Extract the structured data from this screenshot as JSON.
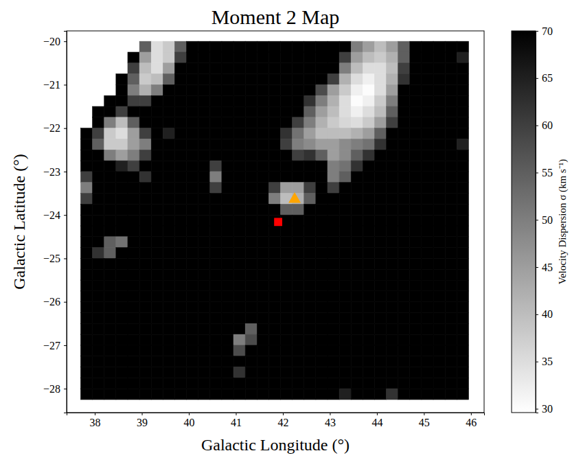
{
  "chart_data": {
    "type": "heatmap",
    "title": "Moment 2 Map",
    "x_label": "Galactic Longitude (°)",
    "y_label": "Galactic Latitude (°)",
    "xlim": [
      37.4,
      46.28
    ],
    "ylim": [
      -28.55,
      -19.76
    ],
    "xticks": [
      38,
      39,
      40,
      41,
      42,
      43,
      44,
      45,
      46
    ],
    "yticks": [
      {
        "value": -28,
        "label": "−28"
      },
      {
        "value": -27,
        "label": "−27"
      },
      {
        "value": -26,
        "label": "−26"
      },
      {
        "value": -25,
        "label": "−25"
      },
      {
        "value": -24,
        "label": "−24"
      },
      {
        "value": -23,
        "label": "−23"
      },
      {
        "value": -22,
        "label": "−22"
      },
      {
        "value": -21,
        "label": "−21"
      },
      {
        "value": -20,
        "label": "−20"
      }
    ],
    "x_bins": [
      37.7,
      37.95,
      38.2,
      38.45,
      38.7,
      38.95,
      39.2,
      39.45,
      39.7,
      39.95,
      40.2,
      40.45,
      40.7,
      40.95,
      41.2,
      41.45,
      41.7,
      41.95,
      42.2,
      42.45,
      42.7,
      42.95,
      43.2,
      43.45,
      43.7,
      43.95,
      44.2,
      44.45,
      44.7,
      44.95,
      45.2,
      45.45,
      45.7,
      45.95
    ],
    "y_bins": [
      -20,
      -20.25,
      -20.5,
      -20.75,
      -21,
      -21.25,
      -21.5,
      -21.75,
      -22,
      -22.25,
      -22.5,
      -22.75,
      -23,
      -23.25,
      -23.5,
      -23.75,
      -24,
      -24.25,
      -24.5,
      -24.75,
      -25,
      -25.25,
      -25.5,
      -25.75,
      -26,
      -26.25,
      -26.5,
      -26.75,
      -27,
      -27.25,
      -27.5,
      -27.75,
      -28,
      -28.25
    ],
    "values": [
      [
        null,
        null,
        null,
        null,
        null,
        55,
        35,
        38,
        55,
        70,
        70,
        70,
        70,
        70,
        70,
        70,
        70,
        70,
        70,
        70,
        70,
        70,
        70,
        50,
        45,
        40,
        45,
        55,
        70,
        70,
        70,
        70,
        70
      ],
      [
        null,
        null,
        null,
        null,
        70,
        45,
        35,
        38,
        60,
        70,
        70,
        70,
        70,
        70,
        70,
        70,
        70,
        70,
        70,
        70,
        70,
        70,
        60,
        45,
        40,
        38,
        42,
        55,
        70,
        70,
        70,
        70,
        65
      ],
      [
        null,
        null,
        null,
        null,
        60,
        40,
        35,
        45,
        70,
        70,
        70,
        70,
        70,
        70,
        70,
        70,
        70,
        70,
        70,
        70,
        70,
        70,
        50,
        40,
        35,
        35,
        40,
        60,
        70,
        70,
        70,
        70,
        70
      ],
      [
        null,
        null,
        null,
        70,
        55,
        38,
        40,
        55,
        70,
        70,
        70,
        70,
        70,
        70,
        70,
        70,
        70,
        70,
        70,
        70,
        70,
        60,
        42,
        35,
        32,
        35,
        42,
        62,
        70,
        70,
        70,
        70,
        70
      ],
      [
        null,
        null,
        null,
        70,
        50,
        42,
        50,
        70,
        70,
        70,
        70,
        70,
        70,
        70,
        70,
        70,
        70,
        70,
        70,
        70,
        58,
        45,
        38,
        32,
        30,
        35,
        45,
        70,
        70,
        70,
        70,
        70,
        70
      ],
      [
        null,
        null,
        70,
        70,
        60,
        60,
        70,
        70,
        70,
        70,
        70,
        70,
        70,
        70,
        70,
        70,
        70,
        70,
        70,
        62,
        50,
        42,
        35,
        30,
        32,
        38,
        50,
        70,
        70,
        70,
        70,
        70,
        70
      ],
      [
        null,
        70,
        70,
        60,
        70,
        70,
        70,
        70,
        70,
        70,
        70,
        70,
        70,
        70,
        70,
        70,
        70,
        70,
        70,
        55,
        45,
        40,
        35,
        32,
        35,
        40,
        55,
        70,
        70,
        70,
        70,
        70,
        70
      ],
      [
        null,
        70,
        50,
        40,
        55,
        70,
        70,
        70,
        70,
        70,
        70,
        70,
        70,
        70,
        70,
        70,
        70,
        70,
        60,
        50,
        42,
        38,
        36,
        35,
        38,
        45,
        60,
        70,
        70,
        70,
        70,
        70,
        70
      ],
      [
        70,
        60,
        38,
        35,
        45,
        60,
        70,
        65,
        70,
        70,
        70,
        70,
        70,
        70,
        70,
        70,
        70,
        62,
        52,
        45,
        40,
        40,
        40,
        42,
        45,
        55,
        70,
        70,
        70,
        70,
        70,
        70,
        70
      ],
      [
        70,
        55,
        38,
        38,
        45,
        50,
        70,
        70,
        70,
        70,
        70,
        70,
        70,
        70,
        70,
        70,
        70,
        60,
        50,
        48,
        45,
        45,
        48,
        50,
        52,
        62,
        70,
        70,
        70,
        70,
        70,
        70,
        65
      ],
      [
        70,
        70,
        50,
        45,
        50,
        60,
        70,
        70,
        70,
        70,
        70,
        70,
        70,
        70,
        70,
        70,
        70,
        70,
        60,
        62,
        55,
        45,
        48,
        55,
        62,
        70,
        70,
        70,
        70,
        70,
        70,
        70,
        70
      ],
      [
        70,
        70,
        70,
        65,
        60,
        70,
        70,
        70,
        70,
        70,
        70,
        60,
        70,
        70,
        70,
        70,
        70,
        70,
        70,
        70,
        70,
        50,
        52,
        62,
        70,
        70,
        70,
        70,
        70,
        70,
        70,
        70,
        70
      ],
      [
        60,
        70,
        70,
        70,
        70,
        62,
        70,
        70,
        70,
        70,
        70,
        50,
        70,
        70,
        70,
        70,
        70,
        70,
        70,
        70,
        70,
        50,
        55,
        70,
        70,
        70,
        70,
        70,
        70,
        70,
        70,
        70,
        70
      ],
      [
        50,
        70,
        70,
        70,
        70,
        70,
        70,
        70,
        70,
        70,
        70,
        60,
        70,
        70,
        70,
        70,
        60,
        45,
        45,
        60,
        70,
        60,
        70,
        70,
        70,
        70,
        70,
        70,
        70,
        70,
        70,
        70,
        70
      ],
      [
        60,
        70,
        70,
        70,
        70,
        70,
        70,
        70,
        70,
        70,
        70,
        70,
        70,
        70,
        70,
        70,
        50,
        40,
        42,
        55,
        70,
        70,
        70,
        70,
        70,
        70,
        70,
        70,
        70,
        70,
        70,
        70,
        70
      ],
      [
        70,
        70,
        70,
        70,
        70,
        70,
        70,
        70,
        70,
        70,
        70,
        70,
        70,
        70,
        70,
        70,
        70,
        55,
        55,
        70,
        70,
        70,
        70,
        70,
        70,
        70,
        70,
        70,
        70,
        70,
        70,
        70,
        70
      ],
      [
        70,
        70,
        70,
        70,
        70,
        70,
        70,
        70,
        70,
        70,
        70,
        70,
        70,
        70,
        70,
        70,
        70,
        70,
        70,
        70,
        70,
        70,
        70,
        70,
        70,
        70,
        70,
        70,
        70,
        70,
        70,
        70,
        70
      ],
      [
        70,
        70,
        70,
        70,
        70,
        70,
        70,
        70,
        70,
        70,
        70,
        70,
        70,
        70,
        70,
        70,
        70,
        70,
        70,
        70,
        70,
        70,
        70,
        70,
        70,
        70,
        70,
        70,
        70,
        70,
        70,
        70,
        70
      ],
      [
        70,
        70,
        55,
        52,
        70,
        70,
        70,
        70,
        70,
        70,
        70,
        70,
        70,
        70,
        70,
        70,
        70,
        70,
        70,
        70,
        70,
        70,
        70,
        70,
        70,
        70,
        70,
        70,
        70,
        70,
        70,
        70,
        70
      ],
      [
        70,
        62,
        55,
        70,
        70,
        70,
        70,
        70,
        70,
        70,
        70,
        70,
        70,
        70,
        70,
        70,
        70,
        70,
        70,
        70,
        70,
        70,
        70,
        70,
        70,
        70,
        70,
        70,
        70,
        70,
        70,
        70,
        70
      ],
      [
        70,
        70,
        70,
        70,
        70,
        70,
        70,
        70,
        70,
        70,
        70,
        70,
        70,
        70,
        70,
        70,
        70,
        70,
        70,
        70,
        70,
        70,
        70,
        70,
        70,
        70,
        70,
        70,
        70,
        70,
        70,
        70,
        70
      ],
      [
        70,
        70,
        70,
        70,
        70,
        70,
        70,
        70,
        70,
        70,
        70,
        70,
        70,
        70,
        70,
        70,
        70,
        70,
        70,
        70,
        70,
        70,
        70,
        70,
        70,
        70,
        70,
        70,
        70,
        70,
        70,
        70,
        70
      ],
      [
        70,
        70,
        70,
        70,
        70,
        70,
        70,
        70,
        70,
        70,
        70,
        70,
        70,
        70,
        70,
        70,
        70,
        70,
        70,
        70,
        70,
        70,
        70,
        70,
        70,
        70,
        70,
        70,
        70,
        70,
        70,
        70,
        70
      ],
      [
        70,
        70,
        70,
        70,
        70,
        70,
        70,
        70,
        70,
        70,
        70,
        70,
        70,
        70,
        70,
        70,
        70,
        70,
        70,
        70,
        70,
        70,
        70,
        70,
        70,
        70,
        70,
        70,
        70,
        70,
        70,
        70,
        70
      ],
      [
        70,
        70,
        70,
        70,
        70,
        70,
        70,
        70,
        70,
        70,
        70,
        70,
        70,
        70,
        70,
        70,
        70,
        70,
        70,
        70,
        70,
        70,
        70,
        70,
        70,
        70,
        70,
        70,
        70,
        70,
        70,
        70,
        70
      ],
      [
        70,
        70,
        70,
        70,
        70,
        70,
        70,
        70,
        70,
        70,
        70,
        70,
        70,
        70,
        70,
        70,
        70,
        70,
        70,
        70,
        70,
        70,
        70,
        70,
        70,
        70,
        70,
        70,
        70,
        70,
        70,
        70,
        70
      ],
      [
        70,
        70,
        70,
        70,
        70,
        70,
        70,
        70,
        70,
        70,
        70,
        70,
        70,
        70,
        55,
        70,
        70,
        70,
        70,
        70,
        70,
        70,
        70,
        70,
        70,
        70,
        70,
        70,
        70,
        70,
        70,
        70,
        70
      ],
      [
        70,
        70,
        70,
        70,
        70,
        70,
        70,
        70,
        70,
        70,
        70,
        70,
        70,
        50,
        58,
        70,
        70,
        70,
        70,
        70,
        70,
        70,
        70,
        70,
        70,
        70,
        70,
        70,
        70,
        70,
        70,
        70,
        70
      ],
      [
        70,
        70,
        70,
        70,
        70,
        70,
        70,
        70,
        70,
        70,
        70,
        70,
        70,
        58,
        70,
        70,
        70,
        70,
        70,
        70,
        70,
        70,
        70,
        70,
        70,
        70,
        70,
        70,
        70,
        70,
        70,
        70,
        70
      ],
      [
        70,
        70,
        70,
        70,
        70,
        70,
        70,
        70,
        70,
        70,
        70,
        70,
        70,
        70,
        70,
        70,
        70,
        70,
        70,
        70,
        70,
        70,
        70,
        70,
        70,
        70,
        70,
        70,
        70,
        70,
        70,
        70,
        70
      ],
      [
        70,
        70,
        70,
        70,
        70,
        70,
        70,
        70,
        70,
        70,
        70,
        70,
        70,
        62,
        70,
        70,
        70,
        70,
        70,
        70,
        70,
        70,
        70,
        70,
        70,
        70,
        70,
        70,
        70,
        70,
        70,
        70,
        70
      ],
      [
        70,
        70,
        70,
        70,
        70,
        70,
        70,
        70,
        70,
        70,
        70,
        70,
        70,
        70,
        70,
        70,
        70,
        70,
        70,
        70,
        70,
        70,
        70,
        70,
        70,
        70,
        70,
        70,
        70,
        70,
        70,
        70,
        70
      ],
      [
        70,
        70,
        70,
        70,
        70,
        70,
        70,
        70,
        70,
        70,
        70,
        70,
        70,
        70,
        70,
        70,
        70,
        70,
        70,
        70,
        70,
        70,
        65,
        70,
        70,
        70,
        62,
        70,
        70,
        70,
        70,
        70,
        70
      ]
    ],
    "colorbar": {
      "label": "Velocity Dispersion σ (km s⁻¹)",
      "range": [
        29.6,
        70
      ],
      "ticks": [
        30,
        35,
        40,
        45,
        50,
        55,
        60,
        65,
        70
      ]
    },
    "points": [
      {
        "x": 41.9,
        "y": -24.16,
        "marker": "square",
        "color": "#ff0000"
      },
      {
        "x": 42.25,
        "y": -23.64,
        "marker": "triangle",
        "color": "#ffa500"
      }
    ]
  }
}
